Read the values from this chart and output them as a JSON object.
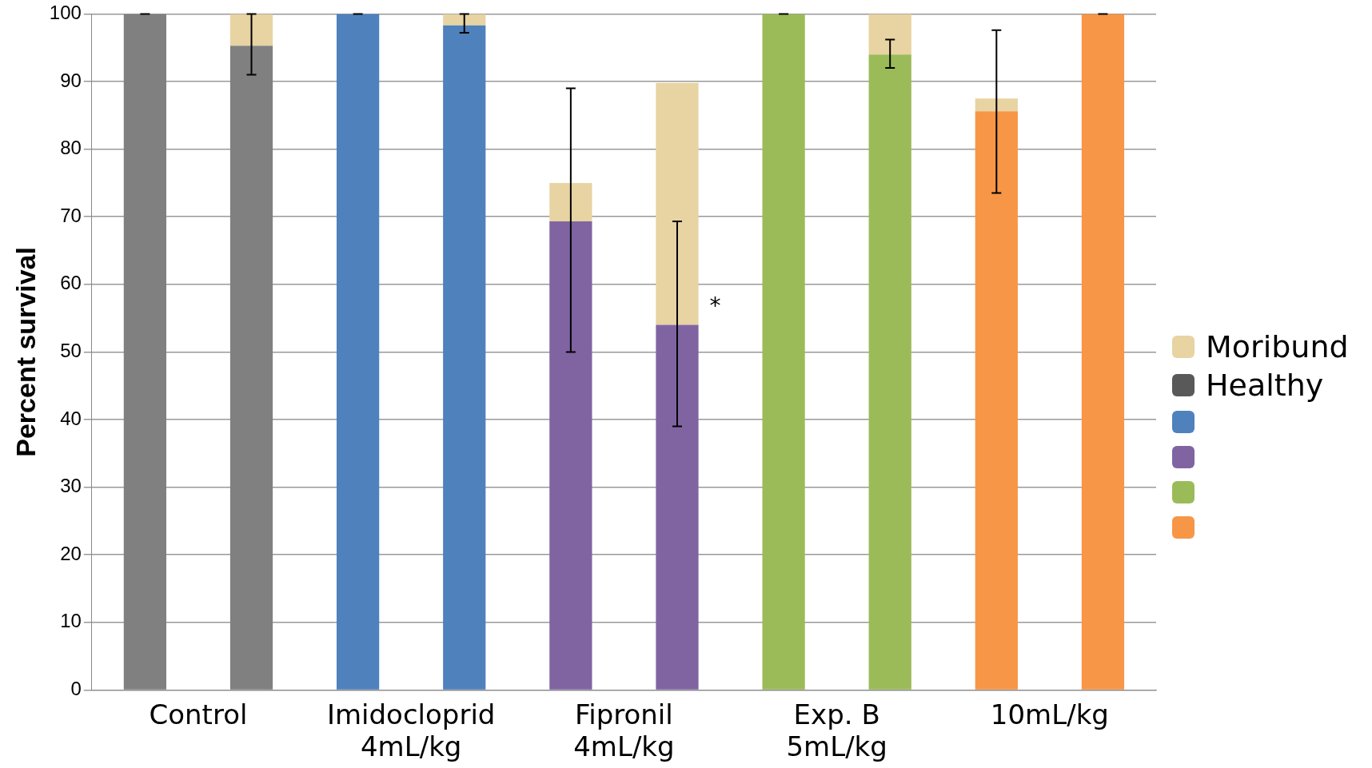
{
  "chart_data": {
    "type": "bar",
    "stacked": true,
    "ylabel": "Percent survival",
    "categories": [
      "Control",
      null,
      "Imidocloprid\n4mL/kg",
      null,
      "Fipronil\n4mL/kg",
      null,
      "Exp. B\n5mL/kg",
      null,
      "10mL/kg",
      null
    ],
    "series": [
      {
        "name": "Healthy",
        "color": "#595959",
        "colors": [
          "#808080",
          "#808080",
          "#4f81bd",
          "#4f81bd",
          "#8064a2",
          "#8064a2",
          "#9bbb59",
          "#9bbb59",
          "#f79646",
          "#f79646"
        ],
        "values": [
          100,
          95.3,
          100,
          98.3,
          69.3,
          54,
          100,
          94,
          85.6,
          100
        ],
        "errors": [
          0,
          [
            91,
            100
          ],
          0,
          [
            97.2,
            100
          ],
          [
            50,
            89
          ],
          [
            39,
            69.3
          ],
          0,
          [
            92,
            96.2
          ],
          [
            73.5,
            97.6
          ],
          0
        ]
      },
      {
        "name": "Moribund",
        "color": "#e8d3a2",
        "values": [
          0,
          4.7,
          0,
          1.7,
          5.7,
          35.8,
          0,
          6,
          1.9,
          0
        ]
      }
    ],
    "ylim": [
      0,
      100
    ],
    "yticks": [
      0,
      10,
      20,
      30,
      40,
      50,
      60,
      70,
      80,
      90,
      100
    ],
    "grid": "y",
    "legend": "right",
    "annotations": [
      "*"
    ]
  }
}
